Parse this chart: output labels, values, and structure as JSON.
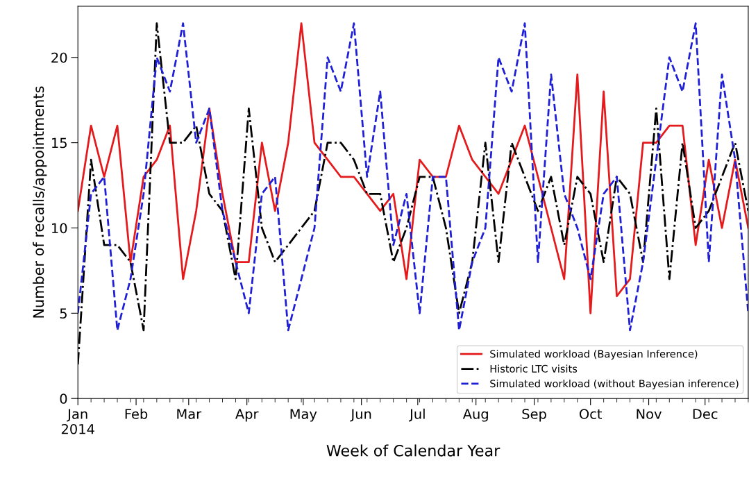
{
  "chart_data": {
    "type": "line",
    "xlabel": "Week of Calendar Year",
    "ylabel": "Number of recalls/appointments",
    "x": [
      "2014-01-01",
      "2014-01-08",
      "2014-01-15",
      "2014-01-22",
      "2014-01-29",
      "2014-02-05",
      "2014-02-12",
      "2014-02-19",
      "2014-02-26",
      "2014-03-05",
      "2014-03-12",
      "2014-03-19",
      "2014-03-26",
      "2014-04-02",
      "2014-04-09",
      "2014-04-16",
      "2014-04-23",
      "2014-04-30",
      "2014-05-07",
      "2014-05-14",
      "2014-05-21",
      "2014-05-28",
      "2014-06-04",
      "2014-06-11",
      "2014-06-18",
      "2014-06-25",
      "2014-07-02",
      "2014-07-09",
      "2014-07-16",
      "2014-07-23",
      "2014-07-30",
      "2014-08-06",
      "2014-08-13",
      "2014-08-20",
      "2014-08-27",
      "2014-09-03",
      "2014-09-10",
      "2014-09-17",
      "2014-09-24",
      "2014-10-01",
      "2014-10-08",
      "2014-10-15",
      "2014-10-22",
      "2014-10-29",
      "2014-11-05",
      "2014-11-12",
      "2014-11-19",
      "2014-11-26",
      "2014-12-03",
      "2014-12-10",
      "2014-12-17",
      "2014-12-24"
    ],
    "series": [
      {
        "name": "Simulated workload (Bayesian Inference)",
        "color": "#e41a1c",
        "line_style": "solid",
        "values": [
          11,
          16,
          13,
          16,
          8,
          13,
          14,
          16,
          7,
          11,
          17,
          12,
          8,
          8,
          15,
          11,
          15,
          22,
          15,
          14,
          13,
          13,
          12,
          11,
          12,
          7,
          14,
          13,
          13,
          16,
          14,
          13,
          12,
          14,
          16,
          13,
          10,
          7,
          19,
          5,
          18,
          6,
          7,
          15,
          15,
          16,
          16,
          9,
          14,
          10,
          14,
          10
        ]
      },
      {
        "name": "Historic LTC visits",
        "color": "#000000",
        "line_style": "dashdot",
        "values": [
          2,
          14,
          9,
          9,
          8,
          4,
          22,
          15,
          15,
          16,
          12,
          11,
          7,
          17,
          10,
          8,
          9,
          10,
          11,
          15,
          15,
          14,
          12,
          12,
          8,
          10,
          13,
          13,
          10,
          5,
          8,
          15,
          8,
          15,
          13,
          11,
          13,
          9,
          13,
          12,
          8,
          13,
          12,
          8,
          17,
          7,
          15,
          10,
          11,
          13,
          15,
          11
        ]
      },
      {
        "name": "Simulated workload (without Bayesian inference)",
        "color": "#1f1fd6",
        "line_style": "dashed",
        "values": [
          5,
          12,
          13,
          4,
          7,
          12,
          20,
          18,
          22,
          15,
          17,
          11,
          8,
          5,
          12,
          13,
          4,
          7,
          10,
          20,
          18,
          22,
          13,
          18,
          9,
          12,
          5,
          13,
          13,
          4,
          8,
          10,
          20,
          18,
          22,
          8,
          19,
          12,
          10,
          7,
          12,
          13,
          4,
          8,
          14,
          20,
          18,
          22,
          8,
          19,
          14,
          5
        ]
      }
    ],
    "xlim": [
      "2014-01-01",
      "2014-12-24"
    ],
    "xticks": [
      {
        "value": "2014-01-01",
        "label": "Jan\n2014"
      },
      {
        "value": "2014-02-01",
        "label": "Feb"
      },
      {
        "value": "2014-03-01",
        "label": "Mar"
      },
      {
        "value": "2014-04-01",
        "label": "Apr"
      },
      {
        "value": "2014-05-01",
        "label": "May"
      },
      {
        "value": "2014-06-01",
        "label": "Jun"
      },
      {
        "value": "2014-07-01",
        "label": "Jul"
      },
      {
        "value": "2014-08-01",
        "label": "Aug"
      },
      {
        "value": "2014-09-01",
        "label": "Sep"
      },
      {
        "value": "2014-10-01",
        "label": "Oct"
      },
      {
        "value": "2014-11-01",
        "label": "Nov"
      },
      {
        "value": "2014-12-01",
        "label": "Dec"
      }
    ],
    "ylim": [
      0,
      23
    ],
    "yticks": [
      0,
      5,
      10,
      15,
      20
    ],
    "grid": false,
    "legend": "bottom right"
  }
}
